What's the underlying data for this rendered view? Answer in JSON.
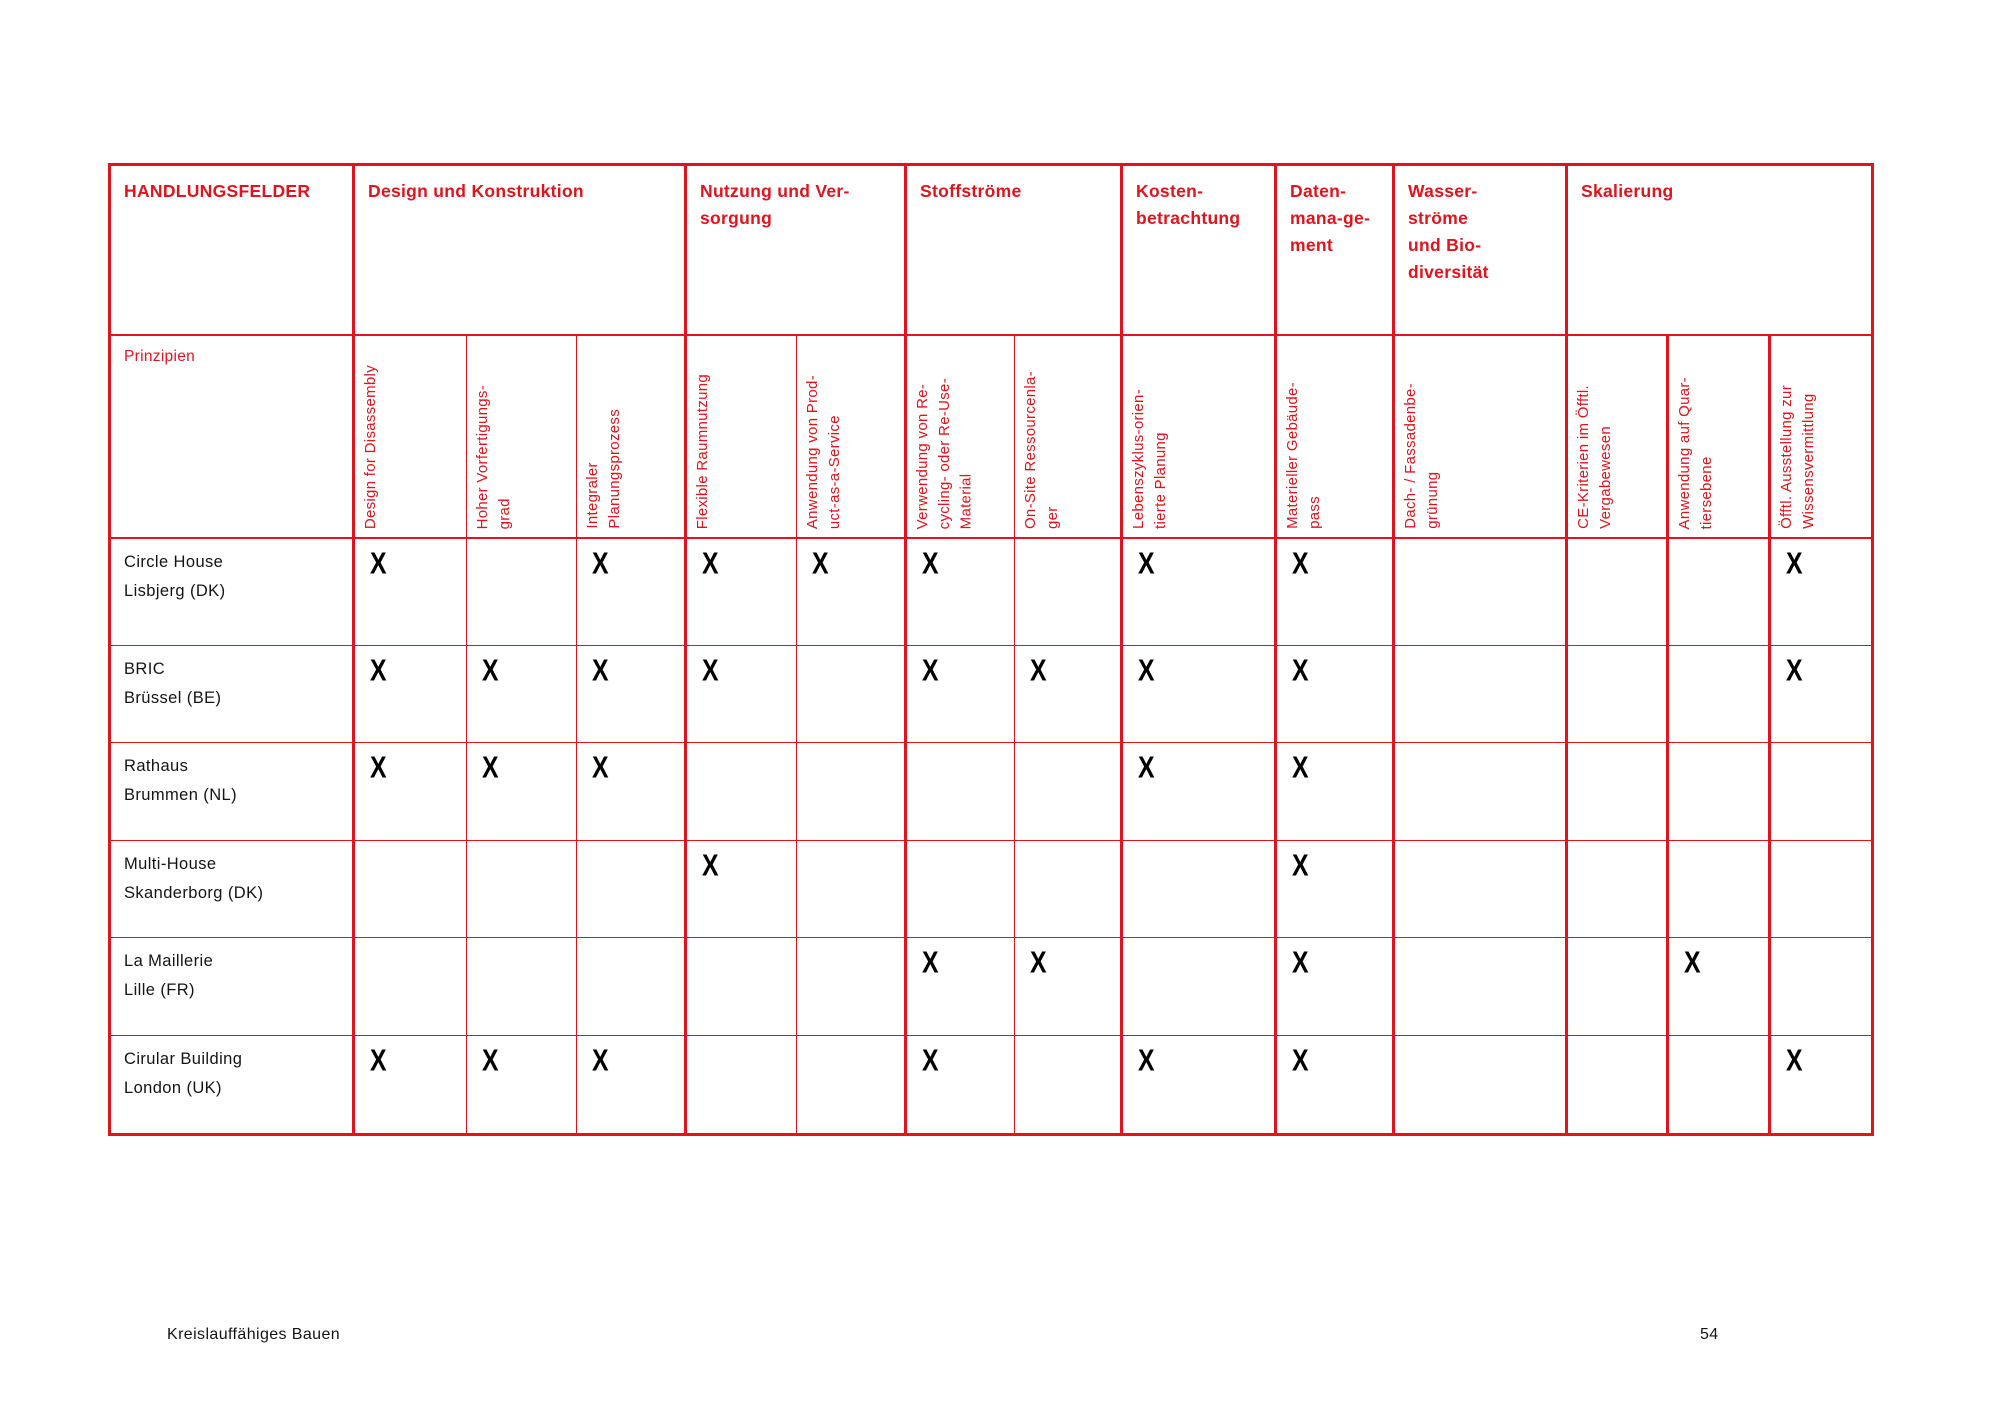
{
  "accent_color": "#e2131c",
  "header": {
    "corner": "HANDLUNGSFELDER",
    "sections": [
      {
        "label": "Design und Konstruktion"
      },
      {
        "label": "Nutzung und Ver-\nsorgung"
      },
      {
        "label": "Stoffströme"
      },
      {
        "label": "Kosten-\nbetrachtung"
      },
      {
        "label": "Daten-\nmana-ge-\nment"
      },
      {
        "label": "Wasser-\nströme\nund Bio-\ndiversität"
      },
      {
        "label": "Skalierung"
      }
    ]
  },
  "principles_row": {
    "label": "Prinzipien",
    "columns": [
      "Design for Disassembly",
      "Hoher Vorfertigungs-\ngrad",
      "Integraler\nPlanungsprozess",
      "Flexible Raumnutzung",
      "Anwendung von Prod-\nuct-as-a-Service",
      "Verwendung von Re-\ncycling- oder Re-Use-\nMaterial",
      "On-Site Ressourcenla-\nger",
      "Lebenszyklus-orien-\ntierte Planung",
      "Materieller Gebäude-\npass",
      "Dach- / Fassadenbe-\ngrünung",
      "CE-Kriterien im Öfftl.\nVergabewesen",
      "Anwendung auf Quar-\ntiersebene",
      "Öfftl. Ausstellung zur\nWissensvermittlung"
    ]
  },
  "mark_symbol": "X",
  "rows": [
    {
      "label": "Circle House\nLisbjerg (DK)",
      "marks": [
        1,
        0,
        1,
        1,
        1,
        1,
        0,
        1,
        1,
        0,
        0,
        0,
        1
      ]
    },
    {
      "label": "BRIC\nBrüssel (BE)",
      "marks": [
        1,
        1,
        1,
        1,
        0,
        1,
        1,
        1,
        1,
        0,
        0,
        0,
        1
      ]
    },
    {
      "label": "Rathaus\nBrummen (NL)",
      "marks": [
        1,
        1,
        1,
        0,
        0,
        0,
        0,
        1,
        1,
        0,
        0,
        0,
        0
      ]
    },
    {
      "label": "Multi-House\nSkanderborg (DK)",
      "marks": [
        0,
        0,
        0,
        1,
        0,
        0,
        0,
        0,
        1,
        0,
        0,
        0,
        0
      ]
    },
    {
      "label": "La Maillerie\nLille (FR)",
      "marks": [
        0,
        0,
        0,
        0,
        0,
        1,
        1,
        0,
        1,
        0,
        0,
        1,
        0
      ]
    },
    {
      "label": "Cirular Building\nLondon (UK)",
      "marks": [
        1,
        1,
        1,
        0,
        0,
        1,
        0,
        1,
        1,
        0,
        0,
        0,
        1
      ]
    }
  ],
  "footer": {
    "left": "Kreislauffähiges Bauen",
    "page": "54"
  }
}
